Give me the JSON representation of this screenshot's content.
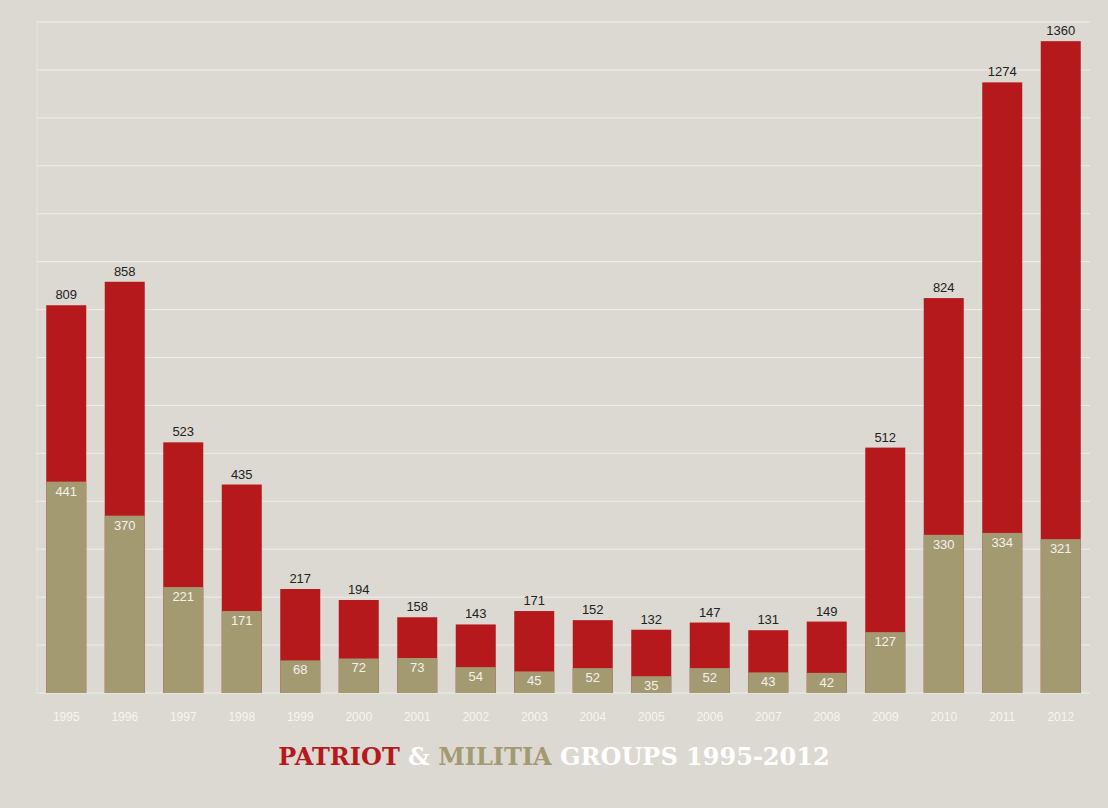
{
  "chart_data": {
    "type": "bar",
    "title": "PATRIOT & MILITIA GROUPS 1995-2012",
    "categories": [
      "1995",
      "1996",
      "1997",
      "1998",
      "1999",
      "2000",
      "2001",
      "2002",
      "2003",
      "2004",
      "2005",
      "2006",
      "2007",
      "2008",
      "2009",
      "2010",
      "2011",
      "2012"
    ],
    "series": [
      {
        "name": "PATRIOT",
        "color": "#b5191c",
        "values": [
          809,
          858,
          523,
          435,
          217,
          194,
          158,
          143,
          171,
          152,
          132,
          147,
          131,
          149,
          512,
          824,
          1274,
          1360
        ]
      },
      {
        "name": "MILITIA",
        "color": "#a39a72",
        "values": [
          441,
          370,
          221,
          171,
          68,
          72,
          73,
          54,
          45,
          52,
          35,
          52,
          43,
          42,
          127,
          330,
          334,
          321
        ]
      }
    ],
    "ylim": [
      0,
      1400
    ],
    "yticks": [
      0,
      100,
      200,
      300,
      400,
      500,
      600,
      700,
      800,
      900,
      1000,
      1100,
      1200,
      1300,
      1400
    ],
    "grid": true,
    "stacked": false,
    "data_labels": true,
    "tick_labels": "x"
  }
}
